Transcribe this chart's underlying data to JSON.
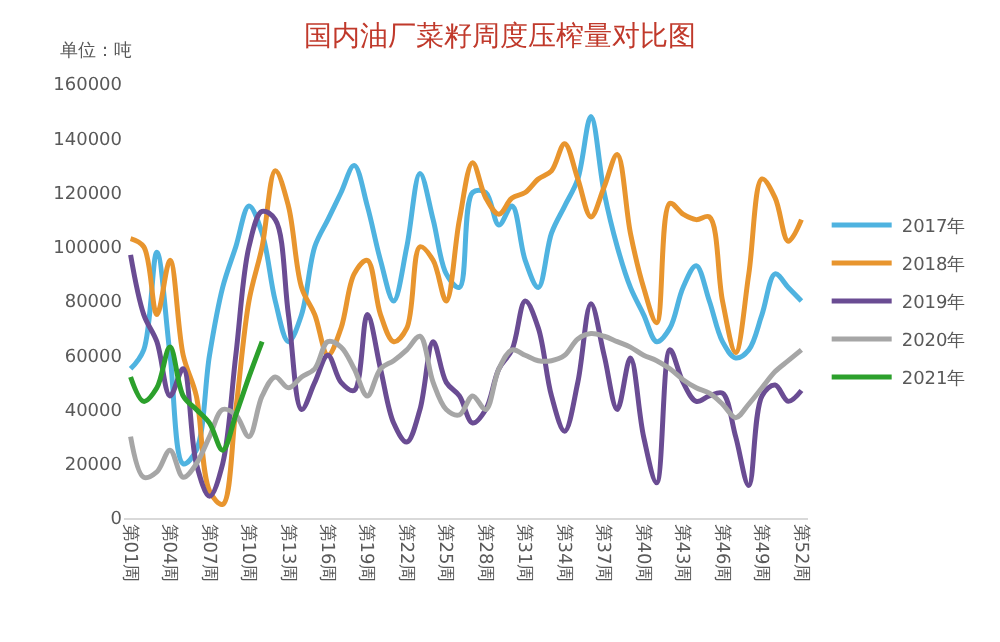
{
  "chart_data": {
    "type": "line",
    "title": "国内油厂菜籽周度压榨量对比图",
    "annotations": [
      "单位：吨"
    ],
    "categories": [
      "第01周",
      null,
      null,
      "第04周",
      null,
      null,
      "第07周",
      null,
      null,
      "第10周",
      null,
      null,
      "第13周",
      null,
      null,
      "第16周",
      null,
      null,
      "第19周",
      null,
      null,
      "第22周",
      null,
      null,
      "第25周",
      null,
      null,
      "第28周",
      null,
      null,
      "第31周",
      null,
      null,
      "第34周",
      null,
      null,
      "第37周",
      null,
      null,
      "第40周",
      null,
      null,
      "第43周",
      null,
      null,
      "第46周",
      null,
      null,
      "第49周",
      null,
      null,
      "第52周"
    ],
    "ylim": [
      0,
      160000
    ],
    "yticks": [
      0,
      20000,
      40000,
      60000,
      80000,
      100000,
      120000,
      140000,
      160000
    ],
    "grid": false,
    "legend": "right",
    "marker": "none",
    "line_style": "solid",
    "series": [
      {
        "name": "2017年",
        "color": "#4fb3e0",
        "values": [
          55000,
          62000,
          98000,
          60000,
          20000,
          25000,
          60000,
          85000,
          100000,
          115000,
          105000,
          80000,
          65000,
          75000,
          100000,
          110000,
          120000,
          130000,
          115000,
          95000,
          80000,
          100000,
          127000,
          110000,
          90000,
          85000,
          120000,
          120000,
          108000,
          115000,
          95000,
          85000,
          105000,
          115000,
          125000,
          148000,
          120000,
          100000,
          85000,
          75000,
          65000,
          70000,
          85000,
          93000,
          80000,
          65000,
          59000,
          62000,
          75000,
          90000,
          85000,
          80000
        ]
      },
      {
        "name": "2018年",
        "color": "#e8952e",
        "values": [
          103000,
          100000,
          75000,
          95000,
          60000,
          45000,
          10000,
          5000,
          40000,
          80000,
          100000,
          128000,
          115000,
          85000,
          75000,
          60000,
          70000,
          90000,
          95000,
          75000,
          65000,
          70000,
          100000,
          95000,
          80000,
          110000,
          131000,
          118000,
          112000,
          118000,
          120000,
          125000,
          128000,
          138000,
          125000,
          111000,
          122000,
          134000,
          105000,
          85000,
          72000,
          116000,
          112000,
          110000,
          111000,
          80000,
          61000,
          90000,
          125000,
          118000,
          102000,
          110000
        ]
      },
      {
        "name": "2019年",
        "color": "#6a4c93",
        "values": [
          97000,
          75000,
          65000,
          45000,
          55000,
          20000,
          8000,
          20000,
          60000,
          100000,
          113000,
          110000,
          75000,
          40000,
          50000,
          60000,
          50000,
          47000,
          75000,
          55000,
          35000,
          28000,
          40000,
          65000,
          50000,
          45000,
          35000,
          40000,
          55000,
          62000,
          80000,
          70000,
          45000,
          32000,
          50000,
          79000,
          60000,
          40000,
          59000,
          30000,
          13000,
          62000,
          50000,
          43000,
          45000,
          46000,
          30000,
          12000,
          45000,
          49000,
          43000,
          47000
        ]
      },
      {
        "name": "2020年",
        "color": "#a6a6a6",
        "values": [
          30000,
          15000,
          17000,
          25000,
          15000,
          20000,
          30000,
          40000,
          38000,
          30000,
          45000,
          52000,
          48000,
          52000,
          55000,
          65000,
          63000,
          55000,
          45000,
          55000,
          58000,
          62000,
          67000,
          50000,
          40000,
          38000,
          45000,
          40000,
          55000,
          62000,
          60000,
          58000,
          58000,
          60000,
          66000,
          68000,
          67000,
          65000,
          63000,
          60000,
          58000,
          55000,
          51000,
          48000,
          46000,
          42000,
          37000,
          42000,
          48000,
          54000,
          58000,
          62000
        ]
      },
      {
        "name": "2021年",
        "color": "#2ca02c",
        "values": [
          52000,
          43000,
          48000,
          63000,
          45000,
          40000,
          35000,
          25000,
          38000,
          52000,
          65000,
          null,
          null,
          null,
          null,
          null,
          null,
          null,
          null,
          null,
          null,
          null,
          null,
          null,
          null,
          null,
          null,
          null,
          null,
          null,
          null,
          null,
          null,
          null,
          null,
          null,
          null,
          null,
          null,
          null,
          null,
          null,
          null,
          null,
          null,
          null,
          null,
          null,
          null,
          null,
          null,
          null
        ]
      }
    ]
  }
}
